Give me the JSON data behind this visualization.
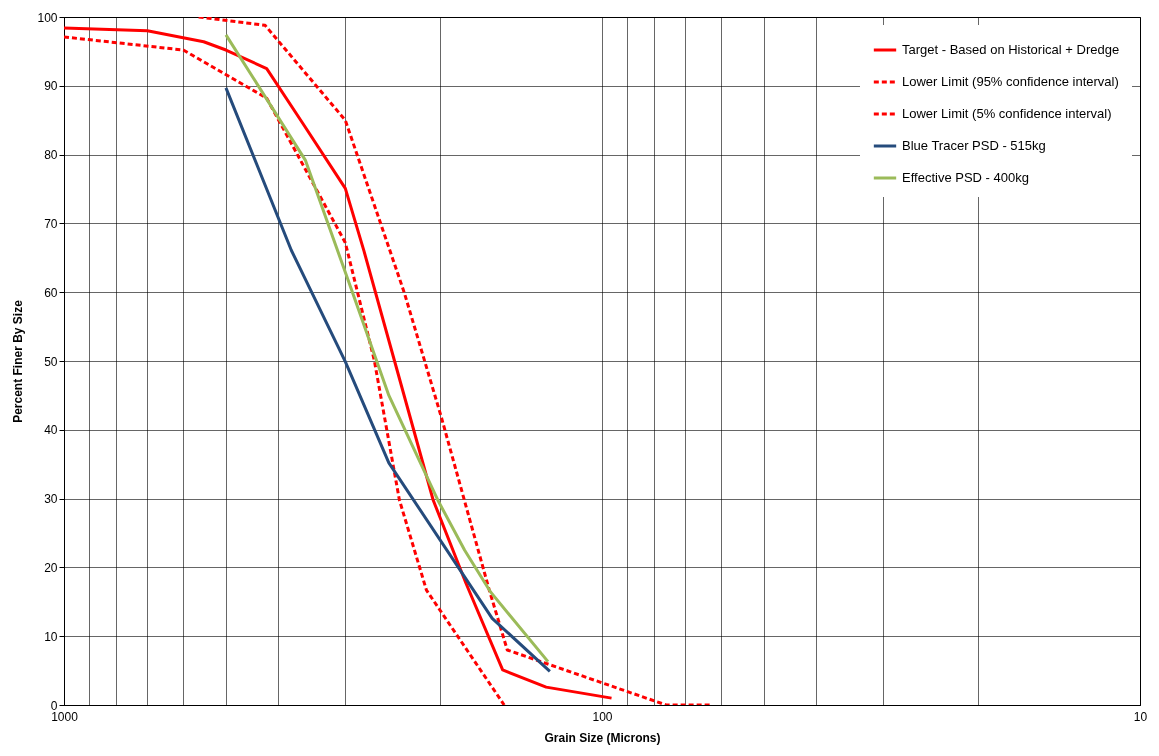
{
  "chart_data": {
    "type": "line",
    "xlabel": "Grain Size (Microns)",
    "ylabel": "Percent Finer By Size",
    "log": "x",
    "xlim": [
      1000,
      10
    ],
    "ylim": [
      0,
      100
    ],
    "xticks": [
      1000,
      {
        "value": 900,
        "label": null
      },
      {
        "value": 800,
        "label": null
      },
      {
        "value": 700,
        "label": null
      },
      {
        "value": 600,
        "label": null
      },
      {
        "value": 500,
        "label": null
      },
      {
        "value": 400,
        "label": null
      },
      {
        "value": 300,
        "label": null
      },
      {
        "value": 200,
        "label": null
      },
      100,
      {
        "value": 90,
        "label": null
      },
      {
        "value": 80,
        "label": null
      },
      {
        "value": 70,
        "label": null
      },
      {
        "value": 60,
        "label": null
      },
      {
        "value": 50,
        "label": null
      },
      {
        "value": 40,
        "label": null
      },
      {
        "value": 30,
        "label": null
      },
      {
        "value": 20,
        "label": null
      },
      10
    ],
    "yticks": [
      0,
      10,
      20,
      30,
      40,
      50,
      60,
      70,
      80,
      90,
      100
    ],
    "grid": true,
    "legend": "top right",
    "marker": "none",
    "series": [
      {
        "name": "Target - Based on Historical + Dredge",
        "color": "#ff0000",
        "line_style": "solid",
        "x": [
          1000,
          700,
          550,
          500,
          420,
          361,
          300,
          277,
          243,
          206,
          179,
          153,
          127,
          96
        ],
        "values": [
          98.4,
          98,
          96.4,
          95.2,
          92.5,
          84.7,
          75.1,
          66,
          50,
          29.8,
          17.7,
          5.1,
          2.6,
          1
        ]
      },
      {
        "name": "Lower Limit (95% confidence interval)",
        "color": "#ff0000",
        "line_style": "dashed",
        "x": [
          562,
          423,
          300,
          233,
          199,
          162,
          150,
          76,
          63
        ],
        "values": [
          100,
          98.8,
          85,
          59.9,
          41.9,
          16.7,
          8,
          0,
          0
        ]
      },
      {
        "name": "Lower Limit (5% confidence interval)",
        "color": "#ff0000",
        "line_style": "dashed",
        "x": [
          1000,
          600,
          420,
          300,
          265,
          238,
          212,
          152
        ],
        "values": [
          97.1,
          95.2,
          88.2,
          67.2,
          50.1,
          29.8,
          16.7,
          0
        ]
      },
      {
        "name": "Blue Tracer PSD - 515kg",
        "color": "#254b7c",
        "line_style": "solid",
        "x": [
          500,
          378,
          300,
          249,
          160,
          125
        ],
        "values": [
          89.7,
          66.1,
          49.9,
          35.2,
          12.6,
          4.9
        ]
      },
      {
        "name": "Effective PSD - 400kg",
        "color": "#9bbb59",
        "line_style": "solid",
        "x": [
          500,
          356,
          295,
          249,
          202,
          180,
          161,
          126
        ],
        "values": [
          97.4,
          79.2,
          61.3,
          45,
          29.8,
          22.5,
          16.4,
          6.3
        ]
      }
    ]
  }
}
